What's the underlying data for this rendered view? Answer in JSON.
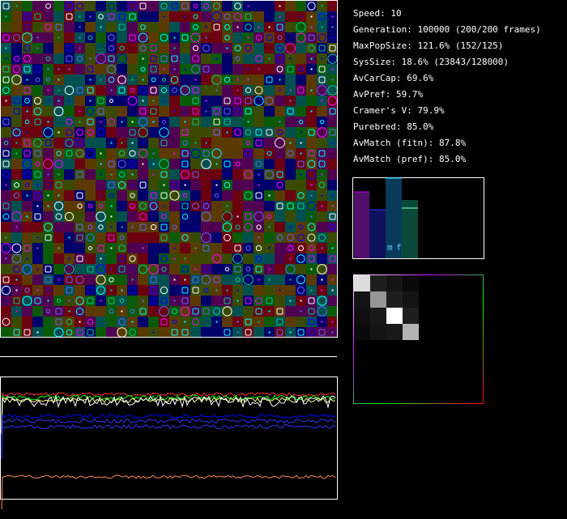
{
  "stats": [
    "Speed: 10",
    "Generation: 100000 (200/200 frames)",
    "MaxPopSize: 121.6% (152/125)",
    "SysSize: 18.6% (23843/128000)",
    "AvCarCap: 69.6%",
    "AvPref: 59.7%",
    "Cramer's V: 79.9%",
    "Purebred: 85.0%",
    "AvMatch (fitn): 87.8%",
    "AvMatch (pref): 85.0%"
  ],
  "bar_panel": {
    "labels": [
      "m",
      "f"
    ]
  }
}
